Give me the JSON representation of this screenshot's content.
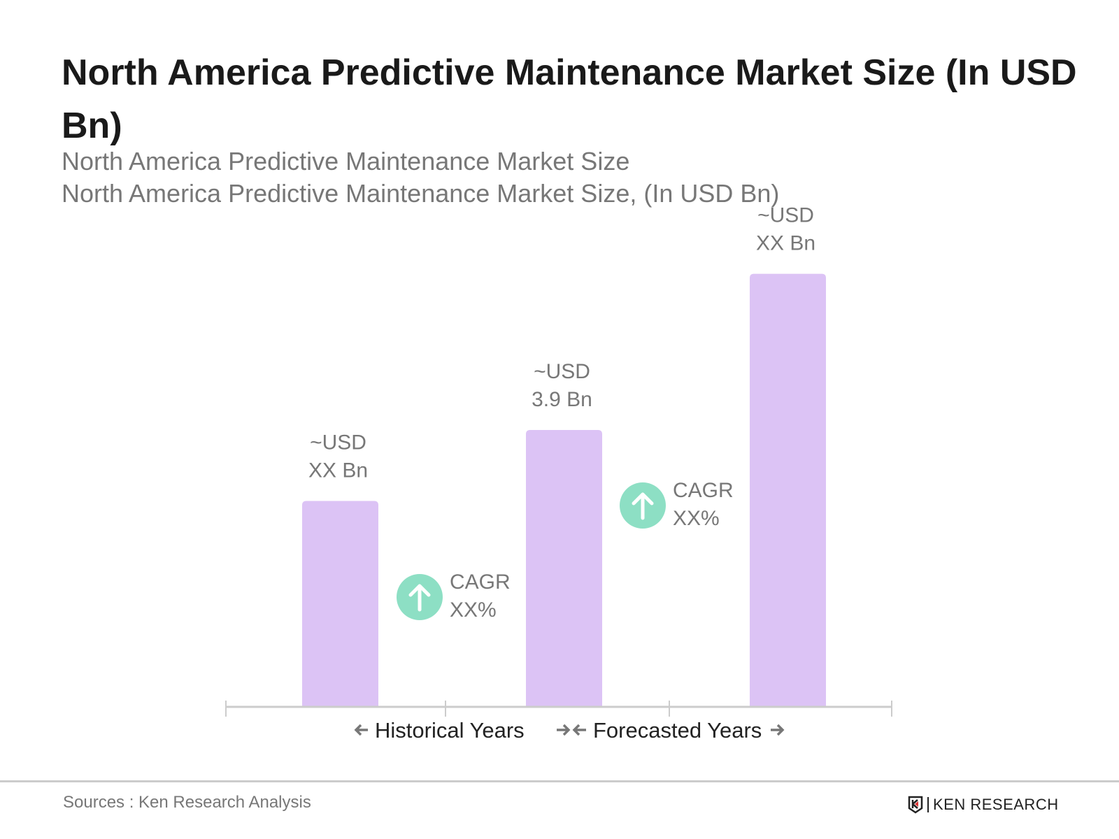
{
  "title": "North America Predictive Maintenance Market Size (In USD Bn)",
  "subtitle1": "North America Predictive Maintenance Market Size",
  "subtitle2": "North America Predictive Maintenance Market Size, (In USD Bn)",
  "chart_data": {
    "type": "bar",
    "categories": [
      "",
      "",
      ""
    ],
    "values": [
      2.9,
      3.9,
      6.1
    ],
    "data_labels": [
      [
        "~USD",
        "XX Bn"
      ],
      [
        "~USD",
        "3.9 Bn"
      ],
      [
        "~USD",
        "XX Bn"
      ]
    ],
    "bar_color": "#dcc3f5",
    "cagr": [
      {
        "label": "CAGR",
        "value": "XX%",
        "between": [
          0,
          1
        ]
      },
      {
        "label": "CAGR",
        "value": "XX%",
        "between": [
          1,
          2
        ]
      }
    ],
    "cagr_icon": "arrow-up-circle-icon",
    "cagr_color": "#8ddfc4",
    "periods": [
      "Historical Years",
      "Forecasted Years"
    ],
    "grid": false,
    "ylim": [
      0,
      6.5
    ]
  },
  "footer": {
    "source": "Sources : Ken Research Analysis",
    "logo": "KEN RESEARCH"
  }
}
